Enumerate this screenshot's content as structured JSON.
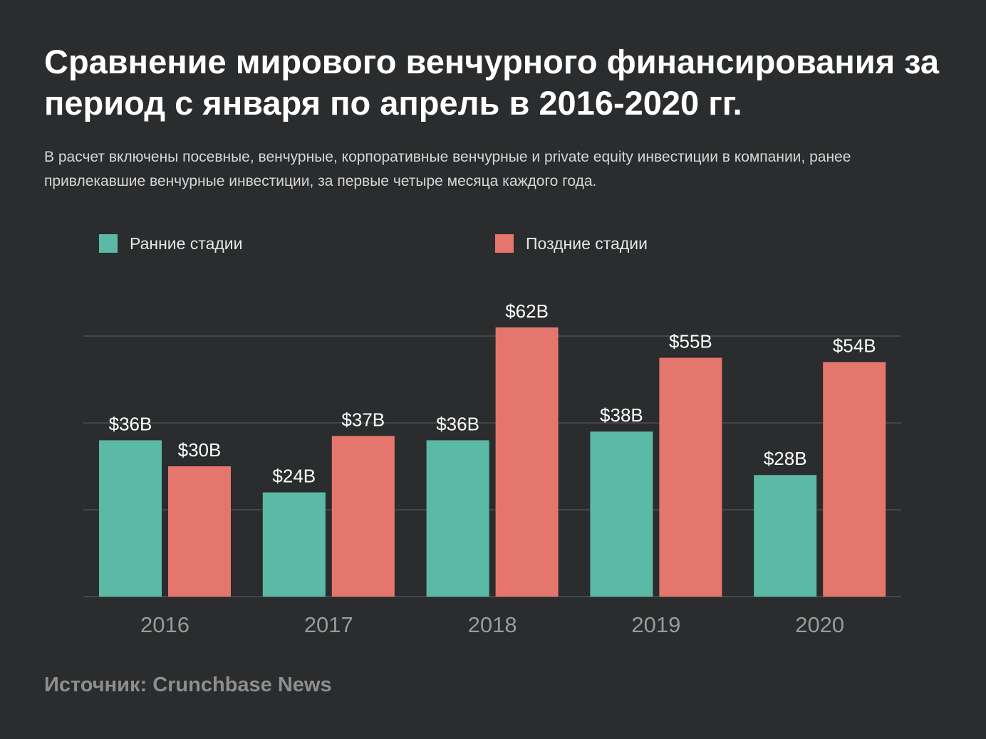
{
  "title": "Сравнение мирового венчурного финансирования за период с января по апрель в 2016-2020 гг.",
  "subtitle": "В расчет включены посевные, венчурные, корпоративные венчурные и private equity инвестиции в компании, ранее привлекавшие венчурные инвестиции, за первые четыре месяца каждого года.",
  "source": "Источник: Crunchbase News",
  "colors": {
    "background": "#2a2c2d",
    "early": "#5bbaa6",
    "late": "#e5766e",
    "grid": "#5c5e5f",
    "tick_text": "#9a9a9a"
  },
  "chart_data": {
    "type": "bar",
    "categories": [
      "2016",
      "2017",
      "2018",
      "2019",
      "2020"
    ],
    "series": [
      {
        "name": "Ранние стадии",
        "color": "#5bbaa6",
        "values": [
          36,
          24,
          36,
          38,
          28
        ],
        "labels": [
          "$36B",
          "$24B",
          "$36B",
          "$38B",
          "$28B"
        ]
      },
      {
        "name": "Поздние стадии",
        "color": "#e5766e",
        "values": [
          30,
          37,
          62,
          55,
          54
        ],
        "labels": [
          "$30B",
          "$37B",
          "$62B",
          "$55B",
          "$54B"
        ]
      }
    ],
    "ylim": [
      0,
      62
    ],
    "grid": true,
    "legend": "top"
  }
}
